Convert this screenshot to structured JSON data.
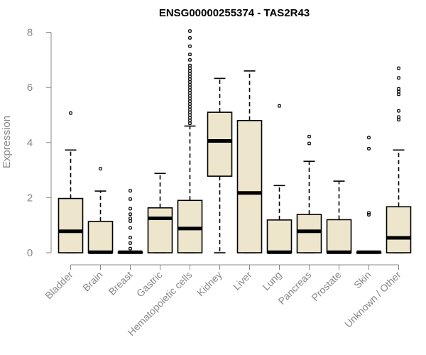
{
  "chart_data": {
    "type": "boxplot",
    "title": "ENSG00000255374 - TAS2R43",
    "xlabel": "",
    "ylabel": "Expression",
    "ylim": [
      0,
      8.1
    ],
    "yticks": [
      0,
      2,
      4,
      6,
      8
    ],
    "box_color": "#ede6cc",
    "categories": [
      "Bladder",
      "Brain",
      "Breast",
      "Gastric",
      "Hematopoietic cells",
      "Kidney",
      "Liver",
      "Lung",
      "Pancreas",
      "Prostate",
      "Skin",
      "Unknown / Other"
    ],
    "boxes": [
      {
        "category": "Bladder",
        "min": 0,
        "q1": 0,
        "median": 0.78,
        "q3": 1.97,
        "max": 3.73,
        "outliers": [
          5.07
        ]
      },
      {
        "category": "Brain",
        "min": 0,
        "q1": 0,
        "median": 0.02,
        "q3": 1.14,
        "max": 2.24,
        "outliers": [
          3.05
        ]
      },
      {
        "category": "Breast",
        "min": 0,
        "q1": 0,
        "median": 0.02,
        "q3": 0.02,
        "max": 0.02,
        "outliers": [
          0.15,
          0.35,
          0.55,
          0.9,
          1.15,
          1.25,
          1.4,
          1.6,
          1.95,
          2.25
        ]
      },
      {
        "category": "Gastric",
        "min": 0,
        "q1": 0,
        "median": 1.25,
        "q3": 1.63,
        "max": 2.88,
        "outliers": []
      },
      {
        "category": "Hematopoietic cells",
        "min": 0,
        "q1": 0,
        "median": 0.88,
        "q3": 1.9,
        "max": 4.6,
        "outliers": [
          4.7,
          4.8,
          4.9,
          5.0,
          5.1,
          5.2,
          5.3,
          5.4,
          5.5,
          5.6,
          5.7,
          5.8,
          5.9,
          6.0,
          6.1,
          6.2,
          6.3,
          6.4,
          6.5,
          6.6,
          6.7,
          6.8,
          7.0,
          7.2,
          7.5,
          7.8,
          8.05
        ]
      },
      {
        "category": "Kidney",
        "min": 0,
        "q1": 2.78,
        "median": 4.06,
        "q3": 5.1,
        "max": 6.33,
        "outliers": []
      },
      {
        "category": "Liver",
        "min": 0,
        "q1": 0,
        "median": 2.17,
        "q3": 4.8,
        "max": 6.6,
        "outliers": []
      },
      {
        "category": "Lung",
        "min": 0,
        "q1": 0,
        "median": 0.02,
        "q3": 1.19,
        "max": 2.44,
        "outliers": [
          5.33
        ]
      },
      {
        "category": "Pancreas",
        "min": 0,
        "q1": 0,
        "median": 0.78,
        "q3": 1.39,
        "max": 3.32,
        "outliers": [
          3.97,
          4.22
        ]
      },
      {
        "category": "Prostate",
        "min": 0,
        "q1": 0,
        "median": 0.02,
        "q3": 1.2,
        "max": 2.6,
        "outliers": []
      },
      {
        "category": "Skin",
        "min": 0,
        "q1": 0,
        "median": 0.02,
        "q3": 0.02,
        "max": 0.02,
        "outliers": [
          1.38,
          1.45,
          3.78,
          4.18
        ]
      },
      {
        "category": "Unknown / Other",
        "min": 0,
        "q1": 0,
        "median": 0.54,
        "q3": 1.67,
        "max": 3.73,
        "outliers": [
          4.83,
          4.93,
          5.15,
          5.75,
          5.85,
          5.95,
          6.35,
          6.7
        ]
      }
    ]
  }
}
